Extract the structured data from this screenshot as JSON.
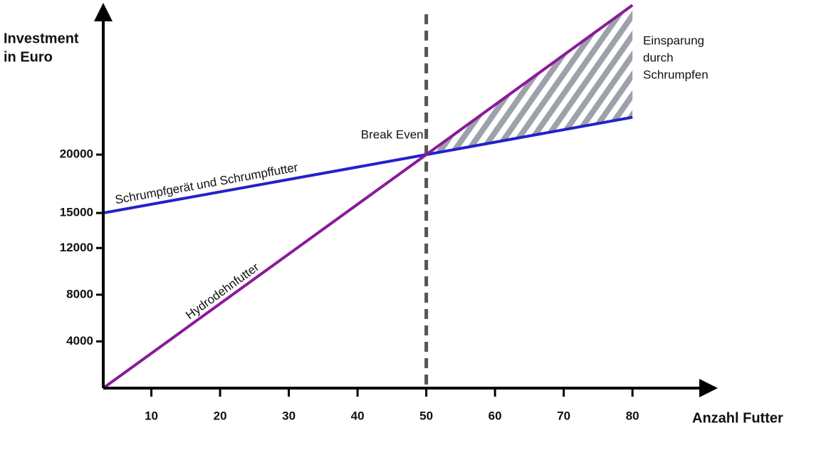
{
  "chart_data": {
    "type": "line",
    "ylabel": [
      "Investment",
      "in Euro"
    ],
    "xlabel": "Anzahl Futter",
    "x": [
      3,
      50,
      80
    ],
    "series": [
      {
        "name": "Schrumpfgerät und Schrumpffutter",
        "color": "#2222c8",
        "values": [
          15000,
          20000,
          23200
        ]
      },
      {
        "name": "Hydrodehnfutter",
        "color": "#8a1a98",
        "values": [
          0,
          20000,
          32800
        ]
      }
    ],
    "xlim": [
      3,
      92
    ],
    "xticks": [
      10,
      20,
      30,
      40,
      50,
      60,
      70,
      80
    ],
    "ylim": [
      0,
      33000
    ],
    "yticks": [
      4000,
      8000,
      12000,
      15000,
      20000
    ],
    "break_even": {
      "x": 50,
      "label": "Break Even"
    },
    "savings_label": [
      "Einsparung",
      "durch",
      "Schrumpfen"
    ],
    "grid": false
  }
}
